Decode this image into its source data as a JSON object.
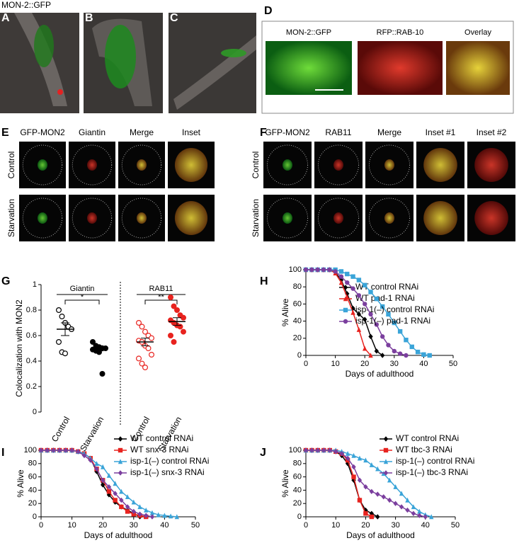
{
  "figure": {
    "header": "MON-2::GFP",
    "panel_labels": [
      "A",
      "B",
      "C",
      "D",
      "E",
      "F",
      "G",
      "H",
      "I",
      "J"
    ],
    "d_labels": [
      "MON-2::GFP",
      "RFP::RAB-10",
      "Overlay"
    ],
    "e_columns": [
      "GFP-MON2",
      "Giantin",
      "Merge",
      "Inset"
    ],
    "e_rows": [
      "Control",
      "Starvation"
    ],
    "f_columns": [
      "GFP-MON2",
      "RAB11",
      "Merge",
      "Inset #1",
      "Inset #2"
    ],
    "f_rows": [
      "Control",
      "Starvation"
    ]
  },
  "chart_data": [
    {
      "type": "dot",
      "ylabel": "Colocalization with MON2",
      "ylim": [
        0,
        1
      ],
      "yticks": [
        0,
        0.2,
        0.4,
        0.6,
        0.8,
        1
      ],
      "groups": [
        {
          "name": "Giantin",
          "significance": "*",
          "series": [
            {
              "name": "Control",
              "color": "#000000",
              "filled": false,
              "values": [
                0.8,
                0.75,
                0.7,
                0.67,
                0.65,
                0.55,
                0.47,
                0.46
              ],
              "mean": 0.65,
              "sem": 0.05
            },
            {
              "name": "Starvation",
              "color": "#000000",
              "filled": true,
              "values": [
                0.55,
                0.52,
                0.51,
                0.5,
                0.5,
                0.49,
                0.48,
                0.47,
                0.3
              ],
              "mean": 0.5,
              "sem": 0.02
            }
          ]
        },
        {
          "name": "RAB11",
          "significance": "**",
          "series": [
            {
              "name": "Control",
              "color": "#e8231f",
              "filled": false,
              "values": [
                0.7,
                0.67,
                0.63,
                0.6,
                0.58,
                0.56,
                0.55,
                0.52,
                0.5,
                0.45,
                0.42,
                0.38,
                0.35
              ],
              "mean": 0.55,
              "sem": 0.03
            },
            {
              "name": "Starvation",
              "color": "#e8231f",
              "filled": true,
              "values": [
                0.9,
                0.83,
                0.8,
                0.76,
                0.74,
                0.72,
                0.7,
                0.68,
                0.67,
                0.63,
                0.6,
                0.55
              ],
              "mean": 0.71,
              "sem": 0.03
            }
          ]
        }
      ]
    },
    {
      "type": "line",
      "xlabel": "Days of adulthood",
      "ylabel": "% Alive",
      "xlim": [
        0,
        50
      ],
      "xticks": [
        0,
        10,
        20,
        30,
        40,
        50
      ],
      "ylim": [
        0,
        100
      ],
      "yticks": [
        0,
        20,
        40,
        60,
        80,
        100
      ],
      "series": [
        {
          "name": "WT control RNAi",
          "color": "#000000",
          "marker": "diamond",
          "x": [
            0,
            2,
            4,
            6,
            8,
            10,
            12,
            14,
            16,
            18,
            20,
            22,
            24,
            26
          ],
          "values": [
            100,
            100,
            100,
            100,
            100,
            97,
            88,
            72,
            55,
            48,
            42,
            22,
            5,
            0
          ]
        },
        {
          "name": "WT pad-1 RNAi",
          "color": "#e8231f",
          "marker": "triangle",
          "x": [
            0,
            2,
            4,
            6,
            8,
            10,
            12,
            14,
            16,
            18,
            20,
            22
          ],
          "values": [
            100,
            100,
            100,
            100,
            100,
            96,
            85,
            68,
            50,
            30,
            8,
            0
          ]
        },
        {
          "name": "isp-1(–) control RNAi",
          "color": "#3aa4d8",
          "marker": "square",
          "x": [
            0,
            2,
            4,
            6,
            8,
            10,
            12,
            14,
            16,
            18,
            20,
            22,
            24,
            26,
            28,
            30,
            32,
            34,
            36,
            38,
            40,
            42
          ],
          "values": [
            100,
            100,
            100,
            100,
            100,
            100,
            98,
            95,
            92,
            88,
            82,
            74,
            66,
            57,
            48,
            38,
            28,
            18,
            10,
            4,
            1,
            0
          ]
        },
        {
          "name": "isp-1(–) pad-1 RNAi",
          "color": "#7b3f9e",
          "marker": "circle",
          "x": [
            0,
            2,
            4,
            6,
            8,
            10,
            12,
            14,
            16,
            18,
            20,
            22,
            24,
            26,
            28,
            30,
            32,
            34
          ],
          "values": [
            100,
            100,
            100,
            100,
            100,
            98,
            92,
            85,
            78,
            70,
            60,
            48,
            36,
            22,
            12,
            5,
            2,
            0
          ]
        }
      ]
    },
    {
      "type": "line",
      "xlabel": "Days of adulthood",
      "ylabel": "% Alive",
      "xlim": [
        0,
        50
      ],
      "xticks": [
        0,
        10,
        20,
        30,
        40,
        50
      ],
      "ylim": [
        0,
        100
      ],
      "yticks": [
        0,
        20,
        40,
        60,
        80,
        100
      ],
      "series": [
        {
          "name": "WT control RNAi",
          "color": "#000000",
          "marker": "diamond",
          "x": [
            0,
            2,
            4,
            6,
            8,
            10,
            12,
            14,
            16,
            18,
            20,
            22,
            24,
            26,
            28,
            30,
            32
          ],
          "values": [
            100,
            100,
            100,
            100,
            100,
            100,
            98,
            95,
            88,
            68,
            48,
            33,
            22,
            15,
            10,
            5,
            0
          ]
        },
        {
          "name": "WT snx-3 RNAi",
          "color": "#e8231f",
          "marker": "square",
          "x": [
            0,
            2,
            4,
            6,
            8,
            10,
            12,
            14,
            16,
            18,
            20,
            22,
            24,
            26,
            28,
            30,
            32,
            34
          ],
          "values": [
            100,
            100,
            100,
            100,
            100,
            100,
            98,
            95,
            88,
            72,
            55,
            38,
            25,
            15,
            8,
            4,
            2,
            0
          ]
        },
        {
          "name": "isp-1(–) control RNAi",
          "color": "#3aa4d8",
          "marker": "triangle",
          "x": [
            0,
            2,
            4,
            6,
            8,
            10,
            12,
            14,
            16,
            18,
            20,
            22,
            24,
            26,
            28,
            30,
            32,
            34,
            36,
            38,
            40,
            42,
            44
          ],
          "values": [
            100,
            100,
            100,
            100,
            100,
            100,
            98,
            95,
            88,
            80,
            75,
            62,
            50,
            38,
            30,
            22,
            15,
            10,
            6,
            3,
            2,
            1,
            0
          ]
        },
        {
          "name": "isp-1(–) snx-3 RNAi",
          "color": "#7b3f9e",
          "marker": "diamond",
          "x": [
            0,
            2,
            4,
            6,
            8,
            10,
            12,
            14,
            16,
            18,
            20,
            22,
            24,
            26,
            28,
            30,
            32,
            34,
            36
          ],
          "values": [
            100,
            100,
            100,
            100,
            100,
            100,
            98,
            92,
            85,
            72,
            55,
            45,
            35,
            25,
            15,
            8,
            4,
            2,
            0
          ]
        }
      ]
    },
    {
      "type": "line",
      "xlabel": "Days of adulthood",
      "ylabel": "% Alive",
      "xlim": [
        0,
        50
      ],
      "xticks": [
        0,
        10,
        20,
        30,
        40,
        50
      ],
      "ylim": [
        0,
        100
      ],
      "yticks": [
        0,
        20,
        40,
        60,
        80,
        100
      ],
      "series": [
        {
          "name": "WT control RNAi",
          "color": "#000000",
          "marker": "diamond",
          "x": [
            0,
            2,
            4,
            6,
            8,
            10,
            12,
            14,
            16,
            18,
            20,
            22,
            24
          ],
          "values": [
            100,
            100,
            100,
            100,
            100,
            98,
            92,
            80,
            55,
            25,
            10,
            5,
            0
          ]
        },
        {
          "name": "WT tbc-3 RNAi",
          "color": "#e8231f",
          "marker": "square",
          "x": [
            0,
            2,
            4,
            6,
            8,
            10,
            12,
            14,
            16,
            18,
            20,
            22
          ],
          "values": [
            100,
            100,
            100,
            100,
            100,
            98,
            95,
            85,
            60,
            25,
            5,
            0
          ]
        },
        {
          "name": "isp-1(–) control RNAi",
          "color": "#3aa4d8",
          "marker": "triangle",
          "x": [
            0,
            2,
            4,
            6,
            8,
            10,
            12,
            14,
            16,
            18,
            20,
            22,
            24,
            26,
            28,
            30,
            32,
            34,
            36,
            38,
            40,
            42
          ],
          "values": [
            100,
            100,
            100,
            100,
            100,
            100,
            98,
            95,
            92,
            88,
            85,
            78,
            72,
            65,
            55,
            45,
            35,
            25,
            15,
            8,
            3,
            0
          ]
        },
        {
          "name": "isp-1(–) tbc-3 RNAi",
          "color": "#7b3f9e",
          "marker": "diamond",
          "x": [
            0,
            2,
            4,
            6,
            8,
            10,
            12,
            14,
            16,
            18,
            20,
            22,
            24,
            26,
            28,
            30,
            32,
            34,
            36,
            38,
            40
          ],
          "values": [
            100,
            100,
            100,
            100,
            100,
            98,
            95,
            88,
            75,
            55,
            45,
            38,
            34,
            30,
            25,
            20,
            15,
            10,
            5,
            2,
            0
          ]
        }
      ]
    }
  ]
}
